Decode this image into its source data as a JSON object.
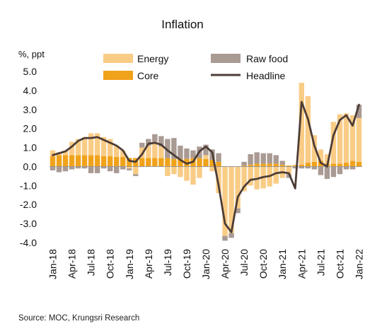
{
  "chart_data": {
    "type": "bar",
    "subtype": "stacked bar with line overlay",
    "title": "Inflation",
    "ylabel": "%, ppt",
    "ylim": [
      -4.0,
      5.0
    ],
    "yticks": [
      "5.0",
      "4.0",
      "3.0",
      "2.0",
      "1.0",
      "0.0",
      "-1.0",
      "-2.0",
      "-3.0",
      "-4.0"
    ],
    "ytick_values": [
      5,
      4,
      3,
      2,
      1,
      0,
      -1,
      -2,
      -3,
      -4
    ],
    "x_tick_labels": [
      "Jan-18",
      "Apr-18",
      "Jul-18",
      "Oct-18",
      "Jan-19",
      "Apr-19",
      "Jul-19",
      "Oct-19",
      "Jan-20",
      "Apr-20",
      "Jul-20",
      "Oct-20",
      "Jan-21",
      "Apr-21",
      "Jul-21",
      "Oct-21",
      "Jan-22"
    ],
    "x_tick_indices": [
      0,
      3,
      6,
      9,
      12,
      15,
      18,
      21,
      24,
      27,
      30,
      33,
      36,
      39,
      42,
      45,
      48
    ],
    "legend": [
      "Energy",
      "Raw food",
      "Core",
      "Headline"
    ],
    "legend_position": "top",
    "grid": false,
    "source": "Source:  MOC, Krungsri Research",
    "colors": {
      "energy": "#f9cc86",
      "raw_food": "#a99a93",
      "core": "#f0a21a",
      "headline": "#4d3d37"
    },
    "series": [
      {
        "name": "Core",
        "type": "bar",
        "values": [
          0.55,
          0.6,
          0.6,
          0.6,
          0.6,
          0.6,
          0.6,
          0.6,
          0.55,
          0.55,
          0.5,
          0.5,
          0.45,
          0.45,
          0.45,
          0.45,
          0.45,
          0.45,
          0.45,
          0.4,
          0.4,
          0.4,
          0.45,
          0.45,
          0.4,
          0.35,
          0.25,
          0.0,
          0.0,
          0.0,
          0.05,
          0.1,
          0.15,
          0.15,
          0.15,
          0.15,
          0.1,
          0.05,
          0.05,
          0.1,
          0.2,
          0.25,
          0.3,
          0.15,
          0.15,
          0.15,
          0.2,
          0.3,
          0.25
        ]
      },
      {
        "name": "Energy",
        "type": "bar",
        "values": [
          0.3,
          0.15,
          0.25,
          0.7,
          0.85,
          0.95,
          1.15,
          1.15,
          1.0,
          0.9,
          0.6,
          0.35,
          -0.1,
          -0.4,
          0.55,
          0.65,
          0.85,
          0.6,
          -0.5,
          -0.4,
          -0.55,
          -0.75,
          -0.95,
          -0.6,
          0.2,
          -0.25,
          -1.4,
          -3.65,
          -3.5,
          -2.2,
          -1.3,
          -1.0,
          -1.2,
          -1.15,
          -1.05,
          -0.9,
          -0.6,
          -0.4,
          0.05,
          4.3,
          3.5,
          1.4,
          0.6,
          0.5,
          2.2,
          2.6,
          2.6,
          2.4,
          2.3
        ]
      },
      {
        "name": "Raw food",
        "type": "bar",
        "values": [
          -0.2,
          -0.3,
          -0.25,
          -0.15,
          -0.1,
          -0.1,
          -0.35,
          -0.35,
          -0.1,
          -0.25,
          -0.35,
          -0.15,
          -0.1,
          -0.1,
          0.25,
          0.35,
          0.4,
          0.55,
          1.0,
          1.1,
          0.7,
          0.55,
          0.4,
          0.6,
          0.55,
          0.55,
          0.45,
          -0.25,
          -0.25,
          -0.25,
          0.2,
          0.55,
          0.6,
          0.55,
          0.55,
          0.45,
          0.2,
          -0.2,
          -0.1,
          -0.1,
          -0.1,
          -0.15,
          -0.45,
          -0.65,
          -0.55,
          -0.4,
          -0.15,
          -0.15,
          0.7
        ]
      },
      {
        "name": "Headline",
        "type": "line",
        "values": [
          0.6,
          0.7,
          0.8,
          1.05,
          1.35,
          1.5,
          1.5,
          1.55,
          1.4,
          1.25,
          1.1,
          0.85,
          0.3,
          0.25,
          0.65,
          1.2,
          1.25,
          1.15,
          0.85,
          0.6,
          0.35,
          0.15,
          0.25,
          0.8,
          1.05,
          0.75,
          -1.0,
          -3.0,
          -3.45,
          -1.6,
          -1.05,
          -0.7,
          -0.65,
          -0.55,
          -0.5,
          -0.35,
          -0.3,
          -0.35,
          -1.15,
          3.4,
          2.5,
          1.1,
          0.2,
          0.0,
          1.65,
          2.45,
          2.7,
          2.15,
          3.25
        ]
      }
    ]
  }
}
